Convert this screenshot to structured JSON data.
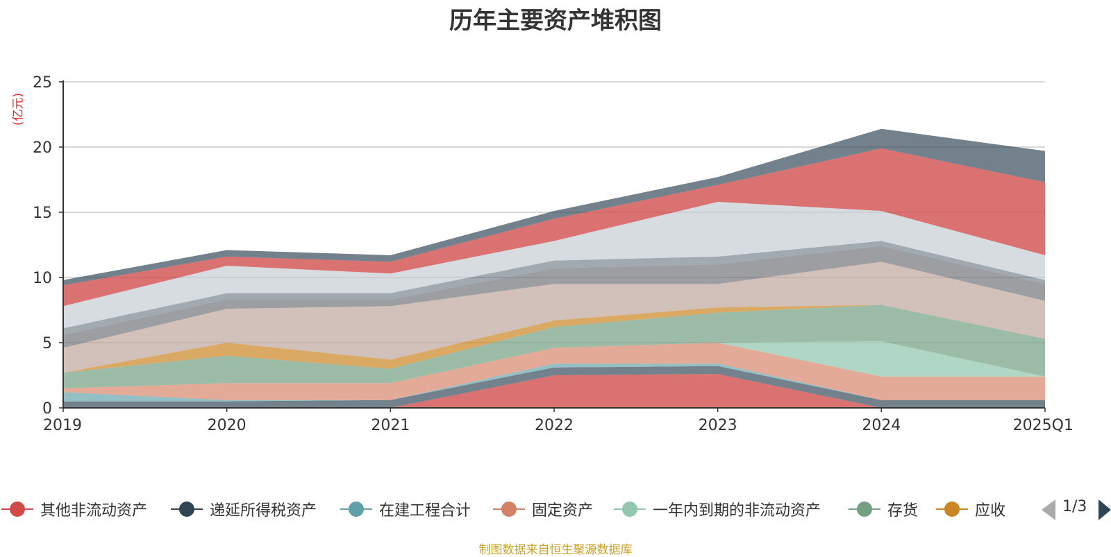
{
  "colors": {
    "unit": "#e8262a",
    "source": "#c9a227",
    "axis": "#333333",
    "grid": "#cccccc"
  },
  "chart_data": {
    "type": "area",
    "title": "历年主要资产堆积图",
    "unit_label": "(亿元)",
    "stacked": true,
    "x": [
      "2019",
      "2020",
      "2021",
      "2022",
      "2023",
      "2024",
      "2025Q1"
    ],
    "ylim": [
      0,
      25
    ],
    "yticks": [
      0,
      5,
      10,
      15,
      20,
      25
    ],
    "grid": true,
    "legend_position": "bottom",
    "series": [
      {
        "name": "其他非流动资产",
        "color": "#d14a4a",
        "area_opacity": 0.78,
        "in_legend": true,
        "values": [
          0,
          0,
          0,
          2.5,
          2.6,
          0,
          0
        ]
      },
      {
        "name": "递延所得税资产",
        "color": "#2f4554",
        "area_opacity": 0.68,
        "in_legend": true,
        "values": [
          0.5,
          0.5,
          0.6,
          0.6,
          0.6,
          0.6,
          0.6
        ]
      },
      {
        "name": "在建工程合计",
        "color": "#61a0a8",
        "area_opacity": 0.68,
        "in_legend": true,
        "values": [
          0.7,
          0.1,
          0,
          0.3,
          0.2,
          0,
          0
        ]
      },
      {
        "name": "固定资产",
        "color": "#d48265",
        "area_opacity": 0.68,
        "in_legend": true,
        "values": [
          0.3,
          1.3,
          1.3,
          1.2,
          1.6,
          1.8,
          1.8
        ]
      },
      {
        "name": "一年内到期的非流动资产",
        "color": "#91c7ae",
        "area_opacity": 0.72,
        "in_legend": true,
        "values": [
          0,
          0,
          0,
          0,
          0,
          2.7,
          0
        ]
      },
      {
        "name": "存货",
        "color": "#749f83",
        "area_opacity": 0.7,
        "in_legend": true,
        "values": [
          1.2,
          2.1,
          1.1,
          1.6,
          2.3,
          2.8,
          2.9
        ]
      },
      {
        "name": "应收",
        "color": "#ca8622",
        "area_opacity": 0.7,
        "in_legend": true,
        "values": [
          0,
          1.0,
          0.7,
          0.5,
          0.4,
          0,
          0
        ]
      },
      {
        "name": "",
        "color": "#bda29a",
        "area_opacity": 0.68,
        "in_legend": false,
        "values": [
          1.9,
          2.6,
          4.1,
          2.8,
          1.8,
          3.3,
          2.9
        ]
      },
      {
        "name": "",
        "color": "#6e7074",
        "area_opacity": 0.68,
        "in_legend": false,
        "values": [
          1.0,
          0.7,
          0.5,
          1.2,
          1.5,
          1.2,
          1.3
        ]
      },
      {
        "name": "",
        "color": "#546570",
        "area_opacity": 0.55,
        "in_legend": false,
        "values": [
          0.5,
          0.5,
          0.5,
          0.6,
          0.6,
          0.4,
          0.3
        ]
      },
      {
        "name": "",
        "color": "#c4ccd3",
        "area_opacity": 0.68,
        "in_legend": false,
        "values": [
          1.7,
          2.1,
          1.5,
          1.5,
          4.2,
          2.3,
          1.9
        ]
      },
      {
        "name": "",
        "color": "#d14a4a",
        "area_opacity": 0.78,
        "in_legend": false,
        "values": [
          1.6,
          0.7,
          0.9,
          1.7,
          1.3,
          4.8,
          5.6
        ]
      },
      {
        "name": "",
        "color": "#2f4554",
        "area_opacity": 0.68,
        "in_legend": false,
        "values": [
          0.4,
          0.5,
          0.5,
          0.6,
          0.6,
          1.5,
          2.4
        ]
      }
    ]
  },
  "legend": {
    "items": [
      "其他非流动资产",
      "递延所得税资产",
      "在建工程合计",
      "固定资产",
      "一年内到期的非流动资产",
      "存货",
      "应收"
    ],
    "pager": "1/3"
  },
  "source_note": "制图数据来自恒生聚源数据库"
}
